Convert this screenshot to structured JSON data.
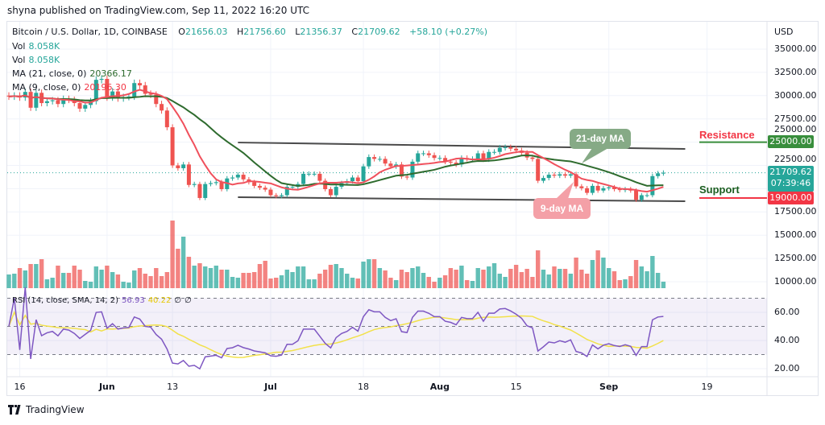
{
  "published": "shyna published on TradingView.com, Sep 11, 2022 16:20 UTC",
  "legend": {
    "symbol": "Bitcoin / U.S. Dollar, 1D, COINBASE",
    "open_label": "O",
    "open": "21656.03",
    "high_label": "H",
    "high": "21756.60",
    "low_label": "L",
    "low": "21356.37",
    "close_label": "C",
    "close": "21709.62",
    "change": "+58.10 (+0.27%)",
    "vol1_label": "Vol",
    "vol1": "8.058K",
    "vol2_label": "Vol",
    "vol2": "8.058K",
    "ma21_label": "MA (21, close, 0)",
    "ma21": "20366.17",
    "ma9_label": "MA (9, close, 0)",
    "ma9": "20196.30",
    "rsi_label": "RSI (14, close, SMA, 14, 2)",
    "rsi": "56.93",
    "rsi_sma": "40.22",
    "rsi_extra1": "∅",
    "rsi_extra2": "∅"
  },
  "price_axis": {
    "currency": "USD",
    "ticks": [
      "35000.00",
      "32500.00",
      "30000.00",
      "27500.00",
      "25000.00",
      "22500.00",
      "17500.00",
      "15000.00",
      "12500.00",
      "10000.00"
    ]
  },
  "rsi_axis": {
    "ticks": [
      "60.00",
      "40.00",
      "20.00"
    ]
  },
  "time_axis": {
    "ticks": [
      "16",
      "Jun",
      "13",
      "Jul",
      "18",
      "Aug",
      "15",
      "Sep",
      "19"
    ]
  },
  "last_price": {
    "value": "21709.62",
    "countdown": "07:39:46"
  },
  "levels": {
    "resistance": {
      "label": "Resistance",
      "value": "25000.00"
    },
    "support": {
      "label": "Support",
      "value": "19000.00"
    }
  },
  "callouts": {
    "ma21": "21-day MA",
    "ma9": "9-day MA"
  },
  "logo": "TradingView",
  "colors": {
    "up": "#26a69a",
    "down": "#ef5350",
    "ma21": "#2e6b2e",
    "ma9": "#f0505c",
    "rsi": "#7e57c2",
    "rsi_sma": "#f2e14a",
    "resistance": "#f23645",
    "support": "#1b5e20"
  },
  "chart_data": {
    "type": "candlestick",
    "start_date": "2022-05-14",
    "interval": "1D",
    "closes": [
      29900,
      30000,
      29800,
      30400,
      28700,
      30300,
      29200,
      29400,
      29500,
      29100,
      29650,
      29550,
      29200,
      28600,
      29000,
      29400,
      31700,
      31800,
      29800,
      30450,
      29700,
      29850,
      29900,
      31350,
      31100,
      30200,
      30100,
      29100,
      28400,
      26600,
      22500,
      22200,
      22600,
      20400,
      20500,
      19000,
      20500,
      20600,
      20700,
      19950,
      21100,
      21200,
      21500,
      21000,
      20700,
      20300,
      20100,
      19900,
      19300,
      19200,
      19300,
      20200,
      20200,
      20500,
      21600,
      21600,
      21600,
      20850,
      19950,
      19300,
      20200,
      20600,
      20800,
      21200,
      20800,
      22400,
      23400,
      23200,
      23200,
      22700,
      22400,
      22600,
      21300,
      21200,
      22900,
      23800,
      23800,
      23600,
      23300,
      23300,
      22900,
      22800,
      22600,
      23300,
      23200,
      23200,
      23800,
      23150,
      23950,
      23950,
      24400,
      24450,
      24300,
      24100,
      23850,
      23350,
      23200,
      20850,
      21150,
      21500,
      21400,
      21550,
      21400,
      21550,
      20250,
      20050,
      19550,
      20300,
      19800,
      20050,
      20150,
      19950,
      19850,
      19950,
      19800,
      18800,
      19300,
      19300,
      21350,
      21650,
      21709.62
    ],
    "volume_k": [
      17,
      18,
      25,
      22,
      30,
      30,
      36,
      11,
      13,
      28,
      19,
      19,
      28,
      23,
      9,
      8,
      27,
      23,
      28,
      20,
      17,
      8,
      7,
      22,
      25,
      18,
      15,
      25,
      15,
      20,
      84,
      49,
      64,
      39,
      28,
      31,
      27,
      25,
      28,
      23,
      23,
      14,
      13,
      19,
      19,
      20,
      30,
      34,
      12,
      13,
      16,
      23,
      20,
      27,
      27,
      11,
      11,
      18,
      23,
      29,
      30,
      25,
      18,
      13,
      12,
      33,
      36,
      36,
      25,
      22,
      13,
      10,
      23,
      20,
      25,
      27,
      19,
      14,
      8,
      13,
      16,
      25,
      23,
      28,
      10,
      9,
      25,
      23,
      27,
      31,
      18,
      14,
      24,
      29,
      20,
      24,
      14,
      47,
      23,
      17,
      27,
      24,
      24,
      18,
      38,
      23,
      18,
      35,
      47,
      38,
      25,
      21,
      10,
      11,
      15,
      35,
      27,
      21,
      40,
      19,
      8.058
    ],
    "indicators": [
      "MA 21",
      "MA 9",
      "RSI 14",
      "RSI SMA 14"
    ],
    "channel": {
      "upper": [
        [
          "2022-06-25",
          24960
        ],
        [
          "2022-09-15",
          24270
        ]
      ],
      "lower": [
        [
          "2022-06-25",
          19080
        ],
        [
          "2022-09-15",
          18650
        ]
      ]
    },
    "horizontal_levels": [
      25000,
      19000
    ],
    "ylim": [
      10000,
      35000
    ],
    "rsi_bands": [
      30,
      50,
      70
    ],
    "grid": true
  }
}
